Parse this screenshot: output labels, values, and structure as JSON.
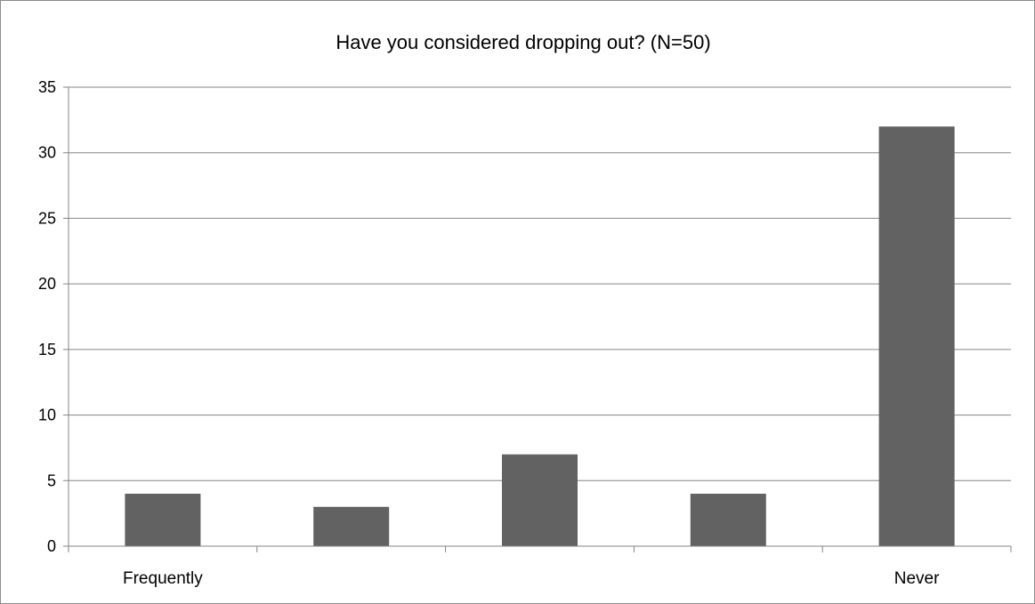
{
  "chart_data": {
    "type": "bar",
    "title": "Have you considered dropping out? (N=50)",
    "categories": [
      "Frequently",
      "",
      "",
      "",
      "Never"
    ],
    "values": [
      4,
      3,
      7,
      4,
      32
    ],
    "xlabel": "",
    "ylabel": "",
    "ylim": [
      0,
      35
    ],
    "yticks": [
      "0",
      "5",
      "10",
      "15",
      "20",
      "25",
      "30",
      "35"
    ],
    "grid": true,
    "legend": "none",
    "bar_color": "#626262",
    "grid_color": "#868686"
  }
}
